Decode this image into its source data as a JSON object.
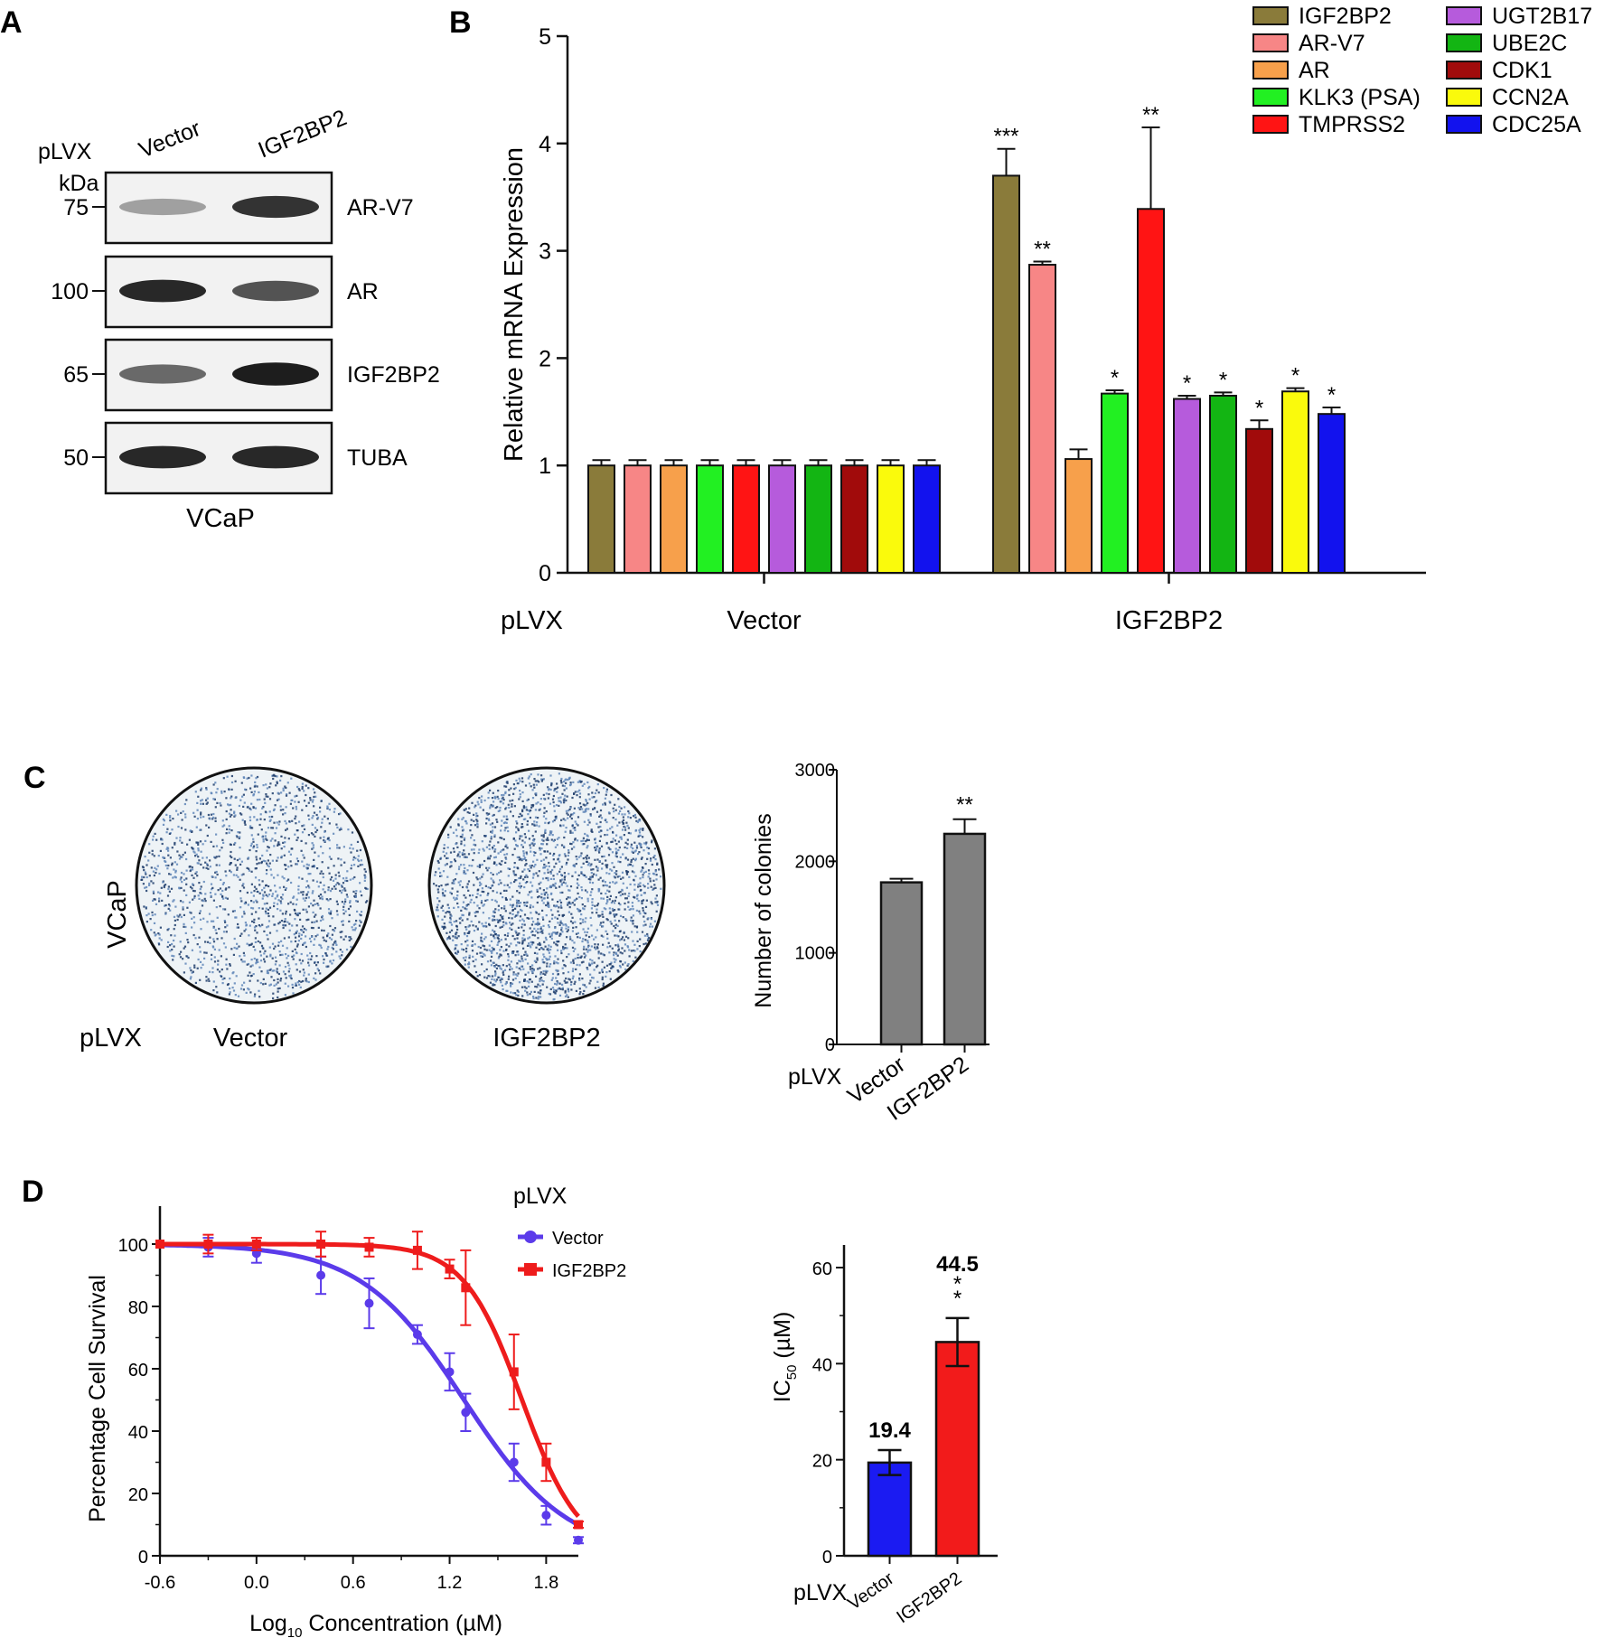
{
  "panels": {
    "a": {
      "letter": "A"
    },
    "b": {
      "letter": "B"
    },
    "c": {
      "letter": "C"
    },
    "d": {
      "letter": "D"
    }
  },
  "western_blot": {
    "construct_label": "pLVX",
    "lanes": [
      "Vector",
      "IGF2BP2"
    ],
    "kda_label": "kDa",
    "cell_line": "VCaP",
    "blots": [
      {
        "protein": "AR-V7",
        "marker": "75",
        "band_intensity": [
          0.35,
          0.85
        ]
      },
      {
        "protein": "AR",
        "marker": "100",
        "band_intensity": [
          0.9,
          0.7
        ]
      },
      {
        "protein": "IGF2BP2",
        "marker": "65",
        "band_intensity": [
          0.6,
          0.95
        ]
      },
      {
        "protein": "TUBA",
        "marker": "50",
        "band_intensity": [
          0.9,
          0.9
        ]
      }
    ]
  },
  "colony_assay": {
    "row_label": "VCaP",
    "construct_label": "pLVX",
    "dishes": [
      {
        "label": "Vector",
        "density": 0.45
      },
      {
        "label": "IGF2BP2",
        "density": 0.75
      }
    ]
  },
  "chart_data": [
    {
      "id": "B",
      "type": "bar",
      "ylabel": "Relative mRNA Expression",
      "ylim": [
        0,
        5
      ],
      "yticks": [
        "0",
        "1",
        "2",
        "3",
        "4",
        "5"
      ],
      "x_prefix": "pLVX",
      "groups": [
        "Vector",
        "IGF2BP2"
      ],
      "legend_position": "top-right",
      "series": [
        {
          "name": "IGF2BP2",
          "color": "#8a7b3a",
          "values": [
            1.0,
            3.7
          ],
          "errors": [
            0.05,
            0.25
          ],
          "sig": [
            "",
            "***"
          ]
        },
        {
          "name": "AR-V7",
          "color": "#f78686",
          "values": [
            1.0,
            2.87
          ],
          "errors": [
            0.05,
            0.03
          ],
          "sig": [
            "",
            "**"
          ]
        },
        {
          "name": "AR",
          "color": "#f7a04b",
          "values": [
            1.0,
            1.06
          ],
          "errors": [
            0.05,
            0.09
          ],
          "sig": [
            "",
            ""
          ]
        },
        {
          "name": "KLK3 (PSA)",
          "color": "#22f022",
          "values": [
            1.0,
            1.67
          ],
          "errors": [
            0.05,
            0.03
          ],
          "sig": [
            "",
            "*"
          ]
        },
        {
          "name": "TMPRSS2",
          "color": "#ff1414",
          "values": [
            1.0,
            3.39
          ],
          "errors": [
            0.05,
            0.76
          ],
          "sig": [
            "",
            "**"
          ]
        },
        {
          "name": "UGT2B17",
          "color": "#b65bdc",
          "values": [
            1.0,
            1.62
          ],
          "errors": [
            0.05,
            0.03
          ],
          "sig": [
            "",
            "*"
          ]
        },
        {
          "name": "UBE2C",
          "color": "#13b513",
          "values": [
            1.0,
            1.65
          ],
          "errors": [
            0.05,
            0.03
          ],
          "sig": [
            "",
            "*"
          ]
        },
        {
          "name": "CDK1",
          "color": "#a10b0b",
          "values": [
            1.0,
            1.34
          ],
          "errors": [
            0.05,
            0.08
          ],
          "sig": [
            "",
            "*"
          ]
        },
        {
          "name": "CCN2A",
          "color": "#fafa0c",
          "values": [
            1.0,
            1.69
          ],
          "errors": [
            0.05,
            0.03
          ],
          "sig": [
            "",
            "*"
          ]
        },
        {
          "name": "CDC25A",
          "color": "#1212ee",
          "values": [
            1.0,
            1.48
          ],
          "errors": [
            0.05,
            0.06
          ],
          "sig": [
            "",
            "*"
          ]
        }
      ]
    },
    {
      "id": "C",
      "type": "bar",
      "ylabel": "Number of colonies",
      "ylim": [
        0,
        3000
      ],
      "yticks": [
        "0",
        "1000",
        "2000",
        "3000"
      ],
      "x_prefix": "pLVX",
      "categories": [
        "Vector",
        "IGF2BP2"
      ],
      "values": [
        1770,
        2300
      ],
      "errors": [
        40,
        160
      ],
      "sig": [
        "",
        "**"
      ],
      "color": "#808080"
    },
    {
      "id": "D-curve",
      "type": "line",
      "ylabel": "Percentage Cell Survival",
      "xlabel": "Log10 Concentration (µM)",
      "xlabel_parts": [
        "Log",
        "10",
        " Concentration (µM)"
      ],
      "xlim": [
        -0.6,
        2.0
      ],
      "ylim": [
        0,
        100
      ],
      "xticks": [
        "-0.6",
        "0.0",
        "0.6",
        "1.2",
        "1.8"
      ],
      "yticks": [
        "0",
        "20",
        "40",
        "60",
        "80",
        "100"
      ],
      "legend_title": "pLVX",
      "legend_position": "top-right",
      "series": [
        {
          "name": "Vector",
          "color": "#5b3bea",
          "x": [
            -0.6,
            -0.3,
            0.0,
            0.4,
            0.7,
            1.0,
            1.2,
            1.3,
            1.6,
            1.8,
            2.0
          ],
          "y": [
            100,
            99,
            97,
            90,
            81,
            71,
            59,
            46,
            30,
            13,
            5
          ],
          "errors": [
            0,
            3,
            3,
            6,
            8,
            3,
            6,
            6,
            6,
            3,
            1
          ],
          "ic50": 1.29,
          "hill": 1.35
        },
        {
          "name": "IGF2BP2",
          "color": "#ee1c1c",
          "x": [
            -0.6,
            -0.3,
            0.0,
            0.4,
            0.7,
            1.0,
            1.2,
            1.3,
            1.6,
            1.8,
            2.0
          ],
          "y": [
            100,
            100,
            100,
            100,
            99,
            98,
            92,
            86,
            59,
            30,
            10
          ],
          "errors": [
            0,
            3,
            2,
            4,
            3,
            6,
            3,
            12,
            12,
            6,
            1
          ],
          "ic50": 1.65,
          "hill": 2.4
        }
      ]
    },
    {
      "id": "D-bar",
      "type": "bar",
      "ylabel": "IC50 (µM)",
      "ylabel_parts": [
        "IC",
        "50",
        " (µM)"
      ],
      "ylim": [
        0,
        65
      ],
      "yticks": [
        "0",
        "20",
        "40",
        "60"
      ],
      "x_prefix": "pLVX",
      "categories": [
        "Vector",
        "IGF2BP2"
      ],
      "values": [
        19.4,
        44.5
      ],
      "value_labels": [
        "19.4",
        "44.5"
      ],
      "errors": [
        2.6,
        5.0
      ],
      "sig": [
        "",
        "**"
      ],
      "colors": [
        "#1b1bf2",
        "#f21b1b"
      ]
    }
  ]
}
